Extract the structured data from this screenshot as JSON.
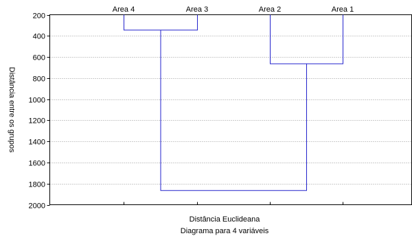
{
  "chart_data": {
    "type": "dendrogram",
    "xlabel": "Distância Euclideana",
    "subtitle": "Diagrama para 4 variáveis",
    "ylabel": "Distância entre os grupos",
    "leaves": [
      "Area 4",
      "Area 3",
      "Area 2",
      "Area 1"
    ],
    "y_ticks": [
      "200",
      "400",
      "600",
      "800",
      "1000",
      "1200",
      "1400",
      "1600",
      "1800",
      "2000"
    ],
    "ylim": [
      200,
      2000
    ],
    "y_inverted": true,
    "grid": true,
    "merges": [
      {
        "left": "Area 4",
        "right": "Area 3",
        "distance": 345
      },
      {
        "left": "Area 2",
        "right": "Area 1",
        "distance": 665
      },
      {
        "left": "Area 4 + Area 3",
        "right": "Area 2 + Area 1",
        "distance": 1865
      }
    ],
    "link_color": "#2222cc"
  }
}
